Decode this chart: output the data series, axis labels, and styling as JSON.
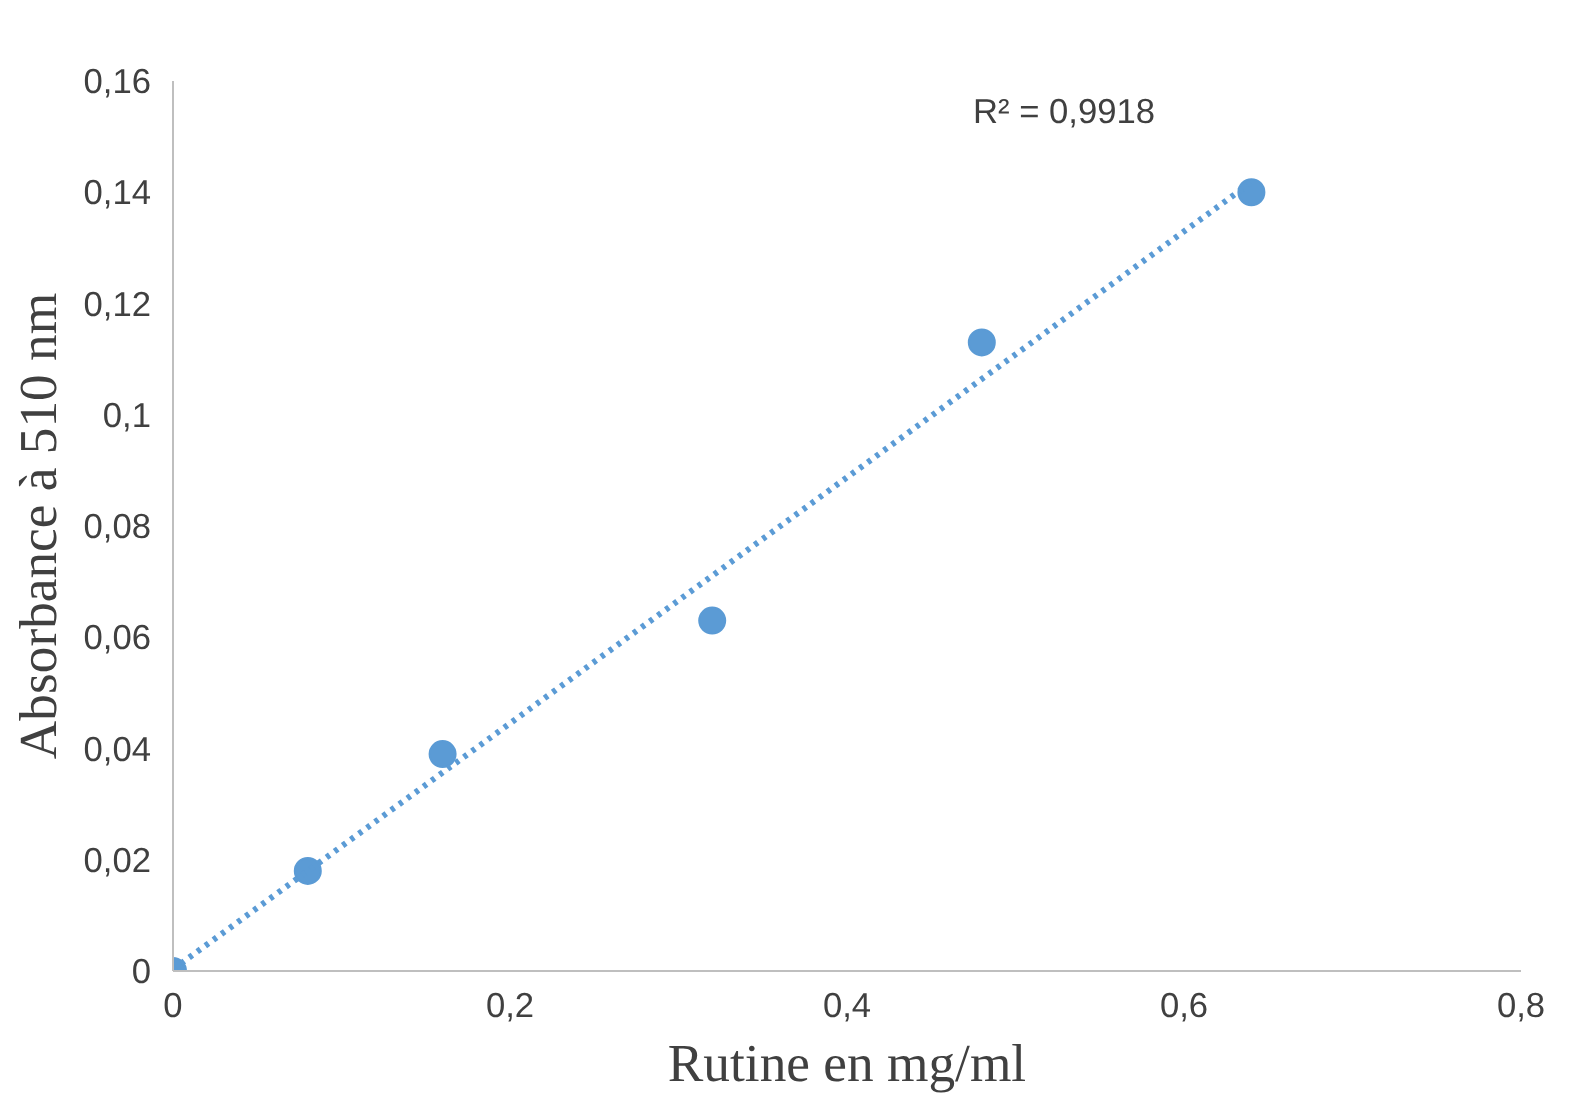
{
  "chart_data": {
    "type": "scatter",
    "xlabel": "Rutine en mg/ml",
    "ylabel": "Absorbance à 510 nm",
    "x": [
      0,
      0.08,
      0.16,
      0.32,
      0.48,
      0.64
    ],
    "series": [
      {
        "color": "#5b9bd5",
        "values": [
          0,
          0.018,
          0.039,
          0.063,
          0.113,
          0.14
        ],
        "marker": "circle"
      },
      {
        "type": "line",
        "color": "#5b9bd5",
        "x": [
          0,
          0.64
        ],
        "values": [
          0.0003,
          0.1418
        ],
        "line_style": "dotted",
        "marker": "none"
      }
    ],
    "annotations": [
      "R² = 0,9918"
    ],
    "xlim": [
      0,
      0.8
    ],
    "ylim": [
      0,
      0.16
    ],
    "xticks": [
      0,
      {
        "value": 0.2,
        "label": "0,2"
      },
      {
        "value": 0.4,
        "label": "0,4"
      },
      {
        "value": 0.6,
        "label": "0,6"
      },
      {
        "value": 0.8,
        "label": "0,8"
      }
    ],
    "yticks": [
      0,
      {
        "value": 0.02,
        "label": "0,02"
      },
      {
        "value": 0.04,
        "label": "0,04"
      },
      {
        "value": 0.06,
        "label": "0,06"
      },
      {
        "value": 0.08,
        "label": "0,08"
      },
      {
        "value": 0.1,
        "label": "0,1"
      },
      {
        "value": 0.12,
        "label": "0,12"
      },
      {
        "value": 0.14,
        "label": "0,14"
      },
      {
        "value": 0.16,
        "label": "0,16"
      }
    ],
    "grid": false
  }
}
